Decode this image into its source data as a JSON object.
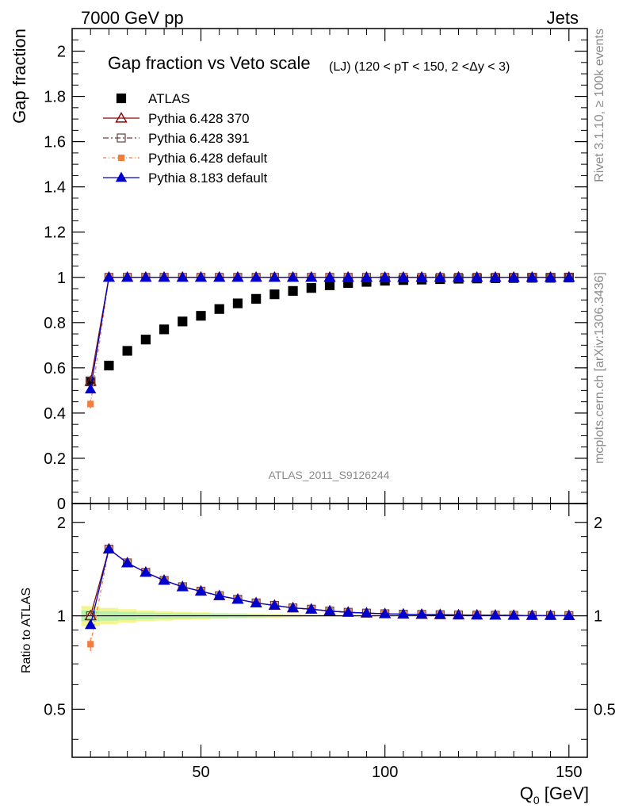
{
  "header": {
    "left": "7000 GeV pp",
    "right": "Jets"
  },
  "side_labels": {
    "rivet": "Rivet 3.1.10, ≥ 100k events",
    "mcplots": "mcplots.cern.ch [arXiv:1306.3436]"
  },
  "analysis_id": "ATLAS_2011_S9126244",
  "colors": {
    "atlas": "#000000",
    "p370": "#8b0000",
    "p391": "#6b3e3e",
    "p6def": "#f47c3c",
    "p8def": "#0000cc",
    "band_inner": "#b8f0a8",
    "band_outer": "#f4f490"
  },
  "chart_data": [
    {
      "type": "scatter",
      "title": "Gap fraction vs Veto scale",
      "subtitle": "(LJ) (120 < pT < 150, 2 <Δy < 3)",
      "ylabel": "Gap fraction",
      "ylim": [
        0,
        2.1
      ],
      "yticks": [
        0,
        0.2,
        0.4,
        0.6,
        0.8,
        1,
        1.2,
        1.4,
        1.6,
        1.8,
        2
      ],
      "ytick_labels": [
        "0",
        "0.2",
        "0.4",
        "0.6",
        "0.8",
        "1",
        "1.2",
        "1.4",
        "1.6",
        "1.8",
        "2"
      ],
      "xlim": [
        15,
        155
      ],
      "legend": {
        "position": "top-left",
        "entries": [
          "ATLAS",
          "Pythia 6.428 370",
          "Pythia 6.428 391",
          "Pythia 6.428 default",
          "Pythia 8.183 default"
        ]
      },
      "series": [
        {
          "name": "ATLAS",
          "x": [
            20,
            25,
            30,
            35,
            40,
            45,
            50,
            55,
            60,
            65,
            70,
            75,
            80,
            85,
            90,
            95,
            100,
            105,
            110,
            115,
            120,
            125,
            130,
            135,
            140,
            145,
            150
          ],
          "y": [
            0.54,
            0.61,
            0.675,
            0.725,
            0.77,
            0.805,
            0.83,
            0.86,
            0.885,
            0.905,
            0.925,
            0.94,
            0.953,
            0.965,
            0.975,
            0.98,
            0.985,
            0.988,
            0.99,
            0.992,
            0.994,
            0.995,
            0.996,
            0.997,
            0.998,
            0.998,
            0.999
          ]
        },
        {
          "name": "Pythia 6.428 370",
          "x": [
            20,
            25,
            30,
            35,
            40,
            45,
            50,
            55,
            60,
            65,
            70,
            75,
            80,
            85,
            90,
            95,
            100,
            105,
            110,
            115,
            120,
            125,
            130,
            135,
            140,
            145,
            150
          ],
          "y": [
            0.54,
            1,
            1,
            1,
            1,
            1,
            1,
            1,
            1,
            1,
            1,
            1,
            1,
            1,
            1,
            1,
            1,
            1,
            1,
            1,
            1,
            1,
            1,
            1,
            1,
            1,
            1
          ]
        },
        {
          "name": "Pythia 6.428 391",
          "x": [
            20,
            25,
            30,
            35,
            40,
            45,
            50,
            55,
            60,
            65,
            70,
            75,
            80,
            85,
            90,
            95,
            100,
            105,
            110,
            115,
            120,
            125,
            130,
            135,
            140,
            145,
            150
          ],
          "y": [
            0.54,
            1,
            1,
            1,
            1,
            1,
            1,
            1,
            1,
            1,
            1,
            1,
            1,
            1,
            1,
            1,
            1,
            1,
            1,
            1,
            1,
            1,
            1,
            1,
            1,
            1,
            1
          ]
        },
        {
          "name": "Pythia 6.428 default",
          "x": [
            20,
            25,
            30,
            35,
            40,
            45,
            50,
            55,
            60,
            65,
            70,
            75,
            80,
            85,
            90,
            95,
            100,
            105,
            110,
            115,
            120,
            125,
            130,
            135,
            140,
            145,
            150
          ],
          "y": [
            0.44,
            1,
            1,
            1,
            1,
            1,
            1,
            1,
            1,
            1,
            1,
            1,
            1,
            1,
            1,
            1,
            1,
            1,
            1,
            1,
            1,
            1,
            1,
            1,
            1,
            1,
            1
          ]
        },
        {
          "name": "Pythia 8.183 default",
          "x": [
            20,
            25,
            30,
            35,
            40,
            45,
            50,
            55,
            60,
            65,
            70,
            75,
            80,
            85,
            90,
            95,
            100,
            105,
            110,
            115,
            120,
            125,
            130,
            135,
            140,
            145,
            150
          ],
          "y": [
            0.505,
            1,
            1,
            1,
            1,
            1,
            1,
            1,
            1,
            1,
            1,
            1,
            1,
            1,
            1,
            1,
            1,
            1,
            1,
            1,
            1,
            1,
            1,
            1,
            1,
            1,
            1
          ]
        }
      ]
    },
    {
      "type": "line",
      "ylabel": "Ratio to ATLAS",
      "xlabel": "Q",
      "xlabel_sub": "0",
      "xlabel_unit": " [GeV]",
      "xlim": [
        15,
        155
      ],
      "xticks": [
        50,
        100,
        150
      ],
      "xtick_labels": [
        "50",
        "100",
        "150"
      ],
      "ylim": [
        0.35,
        2.3
      ],
      "ylog": true,
      "yticks": [
        0.5,
        1,
        2
      ],
      "ytick_labels": [
        "0.5",
        "1",
        "2"
      ],
      "series": [
        {
          "name": "Pythia 6.428 370",
          "x": [
            20,
            25,
            30,
            35,
            40,
            45,
            50,
            55,
            60,
            65,
            70,
            75,
            80,
            85,
            90,
            95,
            100,
            105,
            110,
            115,
            120,
            125,
            130,
            135,
            140,
            145,
            150
          ],
          "y": [
            1.0,
            1.64,
            1.48,
            1.38,
            1.3,
            1.24,
            1.2,
            1.16,
            1.13,
            1.1,
            1.08,
            1.06,
            1.05,
            1.036,
            1.026,
            1.02,
            1.015,
            1.012,
            1.01,
            1.008,
            1.006,
            1.005,
            1.004,
            1.003,
            1.002,
            1.002,
            1.001
          ]
        },
        {
          "name": "Pythia 6.428 391",
          "x": [
            20,
            25,
            30,
            35,
            40,
            45,
            50,
            55,
            60,
            65,
            70,
            75,
            80,
            85,
            90,
            95,
            100,
            105,
            110,
            115,
            120,
            125,
            130,
            135,
            140,
            145,
            150
          ],
          "y": [
            1.0,
            1.64,
            1.48,
            1.38,
            1.3,
            1.24,
            1.2,
            1.16,
            1.13,
            1.1,
            1.08,
            1.06,
            1.05,
            1.036,
            1.026,
            1.02,
            1.015,
            1.012,
            1.01,
            1.008,
            1.006,
            1.005,
            1.004,
            1.003,
            1.002,
            1.002,
            1.001
          ]
        },
        {
          "name": "Pythia 6.428 default",
          "x": [
            20,
            25,
            30,
            35,
            40,
            45,
            50,
            55,
            60,
            65,
            70,
            75,
            80,
            85,
            90,
            95,
            100,
            105,
            110,
            115,
            120,
            125,
            130,
            135,
            140,
            145,
            150
          ],
          "y": [
            0.81,
            1.64,
            1.48,
            1.38,
            1.3,
            1.24,
            1.2,
            1.16,
            1.13,
            1.1,
            1.08,
            1.06,
            1.05,
            1.036,
            1.026,
            1.02,
            1.015,
            1.012,
            1.01,
            1.008,
            1.006,
            1.005,
            1.004,
            1.003,
            1.002,
            1.002,
            1.001
          ]
        },
        {
          "name": "Pythia 8.183 default",
          "x": [
            20,
            25,
            30,
            35,
            40,
            45,
            50,
            55,
            60,
            65,
            70,
            75,
            80,
            85,
            90,
            95,
            100,
            105,
            110,
            115,
            120,
            125,
            130,
            135,
            140,
            145,
            150
          ],
          "y": [
            0.935,
            1.64,
            1.48,
            1.38,
            1.3,
            1.24,
            1.2,
            1.16,
            1.13,
            1.1,
            1.08,
            1.06,
            1.05,
            1.036,
            1.026,
            1.02,
            1.015,
            1.012,
            1.01,
            1.008,
            1.006,
            1.005,
            1.004,
            1.003,
            1.002,
            1.002,
            1.001
          ]
        }
      ],
      "band": {
        "x": [
          20,
          25,
          30,
          35,
          40,
          45,
          50,
          55,
          60,
          65,
          70,
          75,
          80,
          85,
          90,
          95,
          100
        ],
        "inner": [
          0.04,
          0.035,
          0.03,
          0.025,
          0.022,
          0.02,
          0.018,
          0.016,
          0.014,
          0.012,
          0.01,
          0.009,
          0.008,
          0.007,
          0.006,
          0.005,
          0.004
        ],
        "outer": [
          0.075,
          0.06,
          0.05,
          0.04,
          0.035,
          0.03,
          0.026,
          0.022,
          0.019,
          0.016,
          0.014,
          0.012,
          0.01,
          0.009,
          0.008,
          0.007,
          0.006
        ]
      }
    }
  ]
}
